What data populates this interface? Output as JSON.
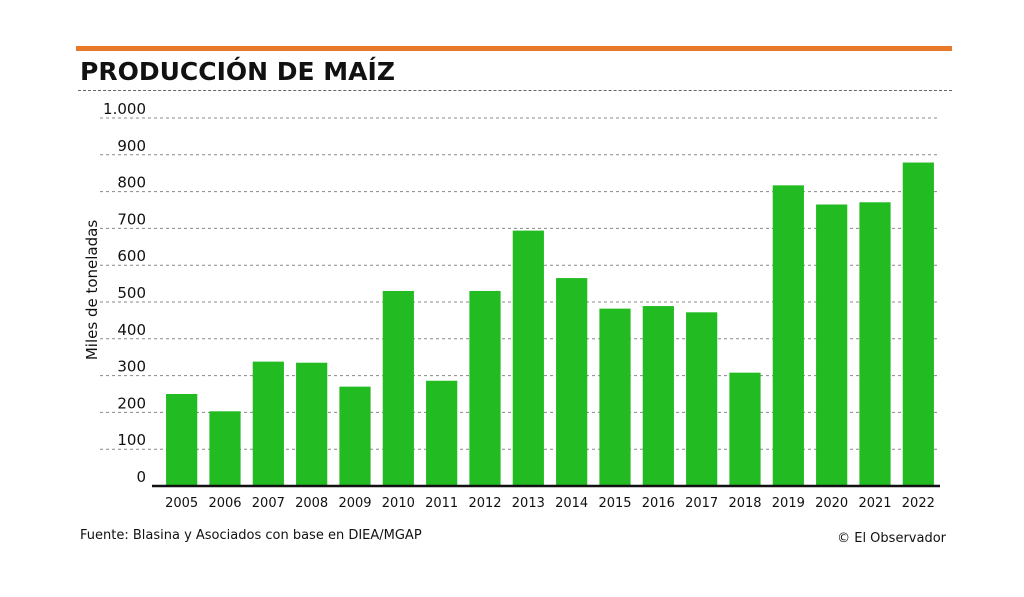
{
  "header": {
    "title": "PRODUCCIÓN DE MAÍZ",
    "accent_color": "#e8782a"
  },
  "footer": {
    "source": "Fuente: Blasina y Asociados con base en DIEA/MGAP",
    "credit": "© El Observador"
  },
  "chart_data": {
    "type": "bar",
    "ylabel": "Miles de toneladas",
    "ylim": [
      0,
      1000
    ],
    "yticks": [
      {
        "value": 0,
        "label": "0"
      },
      {
        "value": 100,
        "label": "100"
      },
      {
        "value": 200,
        "label": "200"
      },
      {
        "value": 300,
        "label": "300"
      },
      {
        "value": 400,
        "label": "400"
      },
      {
        "value": 500,
        "label": "500"
      },
      {
        "value": 600,
        "label": "600"
      },
      {
        "value": 700,
        "label": "700"
      },
      {
        "value": 800,
        "label": "800"
      },
      {
        "value": 900,
        "label": "900"
      },
      {
        "value": 1000,
        "label": "1.000"
      }
    ],
    "grid": true,
    "bar_color": "#22bb22",
    "categories": [
      "2005",
      "2006",
      "2007",
      "2008",
      "2009",
      "2010",
      "2011",
      "2012",
      "2013",
      "2014",
      "2015",
      "2016",
      "2017",
      "2018",
      "2019",
      "2020",
      "2021",
      "2022"
    ],
    "values": [
      250,
      203,
      338,
      335,
      270,
      530,
      286,
      530,
      694,
      565,
      482,
      489,
      472,
      308,
      817,
      765,
      771,
      879
    ]
  }
}
